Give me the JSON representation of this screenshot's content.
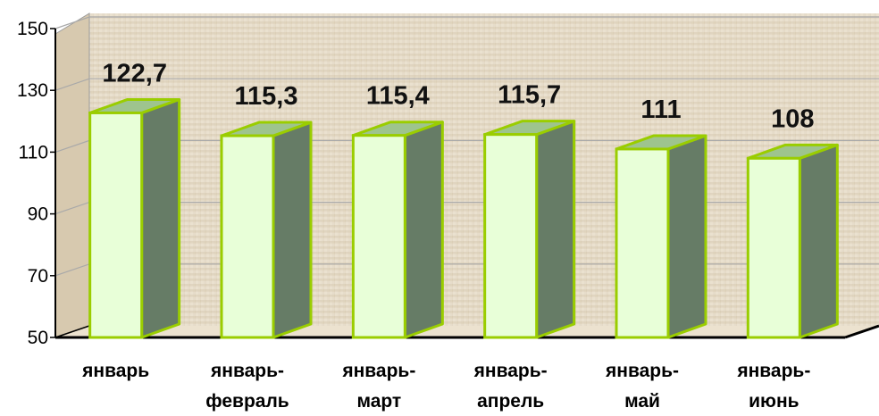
{
  "chart_data": {
    "type": "bar",
    "categories": [
      [
        "январь"
      ],
      [
        "январь-",
        "февраль"
      ],
      [
        "январь-",
        "март"
      ],
      [
        "январь-",
        "апрель"
      ],
      [
        "январь-",
        "май"
      ],
      [
        "январь-",
        "июнь"
      ]
    ],
    "values": [
      122.7,
      115.3,
      115.4,
      115.7,
      111,
      108
    ],
    "data_labels": [
      "122,7",
      "115,3",
      "115,4",
      "115,7",
      "111",
      "108"
    ],
    "ylim": [
      50,
      150
    ],
    "yticks": [
      50,
      70,
      90,
      110,
      130,
      150
    ],
    "grid": true,
    "legend": "none",
    "title": "",
    "xlabel": "",
    "ylabel": "",
    "colors": {
      "bar_front": "#e8ffd8",
      "bar_side": "#667c66",
      "bar_top": "#9ec48e",
      "bar_edge": "#9acd00",
      "wall": "#e2d6c2",
      "floor": "#ede4d2",
      "gridline": "#a9a9a9"
    }
  }
}
